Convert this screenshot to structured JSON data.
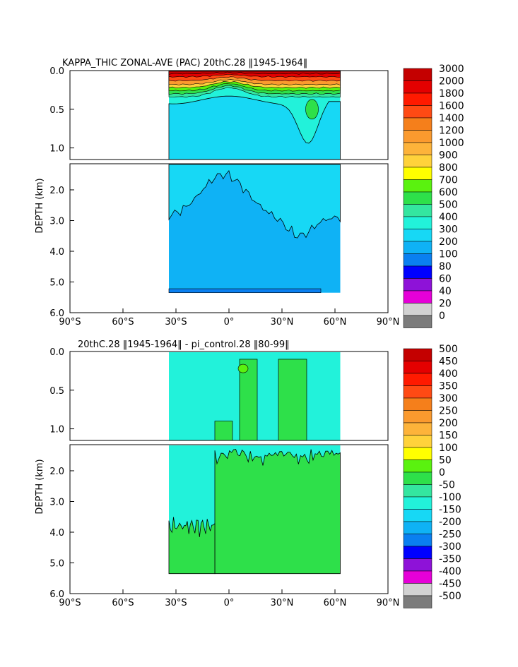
{
  "chart_data": [
    {
      "type": "heatmap",
      "title": "KAPPA_THIC ZONAL-AVE (PAC) 20thC.28 ‖1945-1964‖",
      "ylabel": "DEPTH (km)",
      "x_ticks": [
        "90°S",
        "60°S",
        "30°S",
        "0°",
        "30°N",
        "60°N",
        "90°N"
      ],
      "y_ticks_upper": [
        "0.0",
        "0.5",
        "1.0"
      ],
      "y_ticks_lower": [
        "2.0",
        "3.0",
        "4.0",
        "5.0",
        "6.0"
      ],
      "xlim": [
        -90,
        90
      ],
      "ylim_upper_km": [
        0.0,
        1.15
      ],
      "ylim_lower_km": [
        1.15,
        6.0
      ],
      "data_extent_lat": [
        -34,
        63
      ],
      "colorbar_labels": [
        "3000",
        "2000",
        "1800",
        "1600",
        "1400",
        "1200",
        "1000",
        "900",
        "800",
        "700",
        "600",
        "500",
        "400",
        "300",
        "200",
        "100",
        "80",
        "60",
        "40",
        "20",
        "0"
      ],
      "colorbar_colors": [
        "#c40000",
        "#e40000",
        "#ff1a00",
        "#ff4a14",
        "#f57f1b",
        "#fb9a2e",
        "#fdb33a",
        "#ffd23b",
        "#ffff00",
        "#5af20f",
        "#2ee04a",
        "#34e6a0",
        "#22f2da",
        "#17d8f5",
        "#0fb2f5",
        "#0a7ff0",
        "#0000ff",
        "#8e12d8",
        "#e600d8",
        "#d2d2d2",
        "#7c7c7c"
      ]
    },
    {
      "type": "heatmap",
      "title": "20thC.28 ‖1945-1964‖ - pi_control.28 ‖80-99‖",
      "ylabel": "DEPTH (km)",
      "x_ticks": [
        "90°S",
        "60°S",
        "30°S",
        "0°",
        "30°N",
        "60°N",
        "90°N"
      ],
      "y_ticks_upper": [
        "0.0",
        "0.5",
        "1.0"
      ],
      "y_ticks_lower": [
        "2.0",
        "3.0",
        "4.0",
        "5.0",
        "6.0"
      ],
      "xlim": [
        -90,
        90
      ],
      "ylim_upper_km": [
        0.0,
        1.15
      ],
      "ylim_lower_km": [
        1.15,
        6.0
      ],
      "data_extent_lat": [
        -34,
        63
      ],
      "colorbar_labels": [
        "500",
        "450",
        "400",
        "350",
        "300",
        "250",
        "200",
        "150",
        "100",
        "50",
        "0",
        "-50",
        "-100",
        "-150",
        "-200",
        "-250",
        "-300",
        "-350",
        "-400",
        "-450",
        "-500"
      ],
      "colorbar_colors": [
        "#c40000",
        "#e40000",
        "#ff1a00",
        "#ff4a14",
        "#f57f1b",
        "#fb9a2e",
        "#fdb33a",
        "#ffd23b",
        "#ffff00",
        "#5af20f",
        "#2ee04a",
        "#34e6a0",
        "#22f2da",
        "#17d8f5",
        "#0fb2f5",
        "#0a7ff0",
        "#0000ff",
        "#8e12d8",
        "#e600d8",
        "#d2d2d2",
        "#7c7c7c"
      ]
    }
  ]
}
